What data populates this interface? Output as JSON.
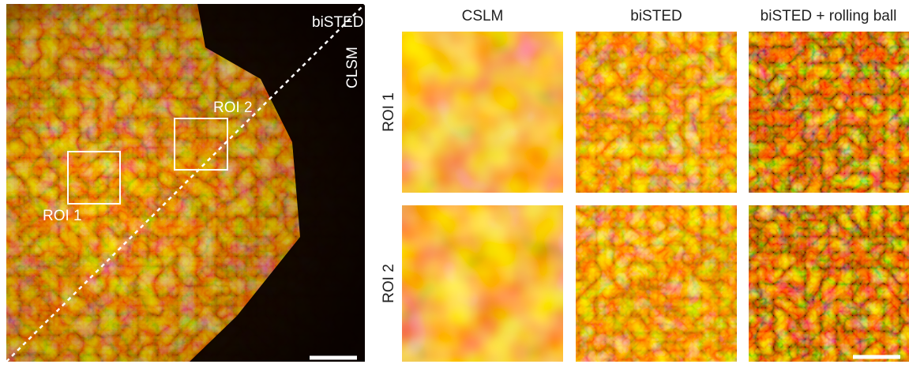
{
  "overview": {
    "label_top": "biSTED",
    "label_side": "CLSM",
    "roi_labels": [
      "ROI 1",
      "ROI 2"
    ]
  },
  "columns": [
    "CSLM",
    "biSTED",
    "biSTED + rolling ball"
  ],
  "rows": [
    "ROI 1",
    "ROI 2"
  ]
}
